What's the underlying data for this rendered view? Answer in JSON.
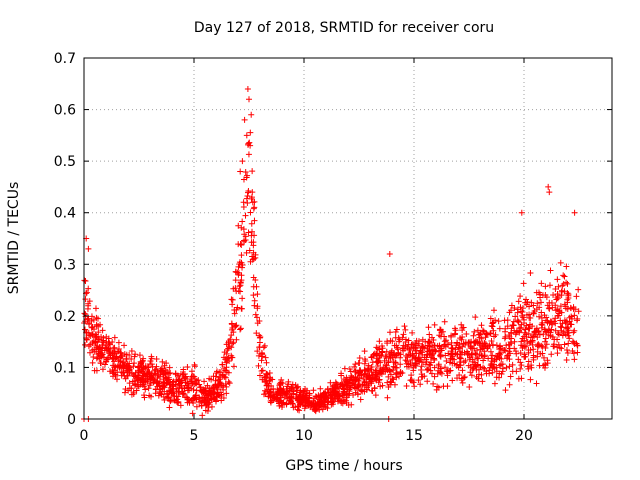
{
  "chart_data": {
    "type": "scatter",
    "title": "Day 127 of 2018, SRMTID for receiver coru",
    "xlabel": "GPS time / hours",
    "ylabel": "SRMTID / TECUs",
    "xlim": [
      0,
      24
    ],
    "ylim": [
      0,
      0.7
    ],
    "grid": true,
    "marker": "+",
    "marker_color": "#ff0000",
    "x_ticks": [
      0,
      5,
      10,
      15,
      20
    ],
    "x_tick_labels": [
      "0",
      "5",
      "10",
      "15",
      "20"
    ],
    "y_ticks": [
      0,
      0.1,
      0.2,
      0.3,
      0.4,
      0.5,
      0.6,
      0.7
    ],
    "y_tick_labels": [
      "0",
      "0.1",
      "0.2",
      "0.3",
      "0.4",
      "0.5",
      "0.6",
      "0.7"
    ],
    "series": [
      {
        "name": "SRMTID",
        "envelope": [
          {
            "x": 0.0,
            "mean": 0.22,
            "spread": 0.09
          },
          {
            "x": 0.5,
            "mean": 0.15,
            "spread": 0.06
          },
          {
            "x": 1.0,
            "mean": 0.13,
            "spread": 0.05
          },
          {
            "x": 1.5,
            "mean": 0.11,
            "spread": 0.05
          },
          {
            "x": 2.0,
            "mean": 0.09,
            "spread": 0.04
          },
          {
            "x": 3.0,
            "mean": 0.085,
            "spread": 0.04
          },
          {
            "x": 4.0,
            "mean": 0.06,
            "spread": 0.04
          },
          {
            "x": 5.0,
            "mean": 0.06,
            "spread": 0.045
          },
          {
            "x": 5.5,
            "mean": 0.04,
            "spread": 0.03
          },
          {
            "x": 6.0,
            "mean": 0.05,
            "spread": 0.035
          },
          {
            "x": 6.5,
            "mean": 0.1,
            "spread": 0.05
          },
          {
            "x": 7.0,
            "mean": 0.25,
            "spread": 0.12
          },
          {
            "x": 7.5,
            "mean": 0.45,
            "spread": 0.15
          },
          {
            "x": 8.0,
            "mean": 0.12,
            "spread": 0.07
          },
          {
            "x": 8.5,
            "mean": 0.05,
            "spread": 0.03
          },
          {
            "x": 9.5,
            "mean": 0.045,
            "spread": 0.025
          },
          {
            "x": 10.5,
            "mean": 0.03,
            "spread": 0.02
          },
          {
            "x": 11.5,
            "mean": 0.05,
            "spread": 0.025
          },
          {
            "x": 12.5,
            "mean": 0.08,
            "spread": 0.04
          },
          {
            "x": 13.5,
            "mean": 0.1,
            "spread": 0.05
          },
          {
            "x": 14.5,
            "mean": 0.12,
            "spread": 0.06
          },
          {
            "x": 16.0,
            "mean": 0.12,
            "spread": 0.06
          },
          {
            "x": 17.5,
            "mean": 0.13,
            "spread": 0.06
          },
          {
            "x": 19.0,
            "mean": 0.14,
            "spread": 0.07
          },
          {
            "x": 20.0,
            "mean": 0.17,
            "spread": 0.09
          },
          {
            "x": 21.0,
            "mean": 0.18,
            "spread": 0.11
          },
          {
            "x": 21.5,
            "mean": 0.2,
            "spread": 0.1
          },
          {
            "x": 22.5,
            "mean": 0.18,
            "spread": 0.08
          }
        ],
        "outliers": [
          {
            "x": 7.3,
            "y": 0.58
          },
          {
            "x": 7.45,
            "y": 0.64
          },
          {
            "x": 7.5,
            "y": 0.62
          },
          {
            "x": 7.6,
            "y": 0.59
          },
          {
            "x": 7.4,
            "y": 0.55
          },
          {
            "x": 7.2,
            "y": 0.5
          },
          {
            "x": 7.55,
            "y": 0.53
          },
          {
            "x": 7.1,
            "y": 0.48
          },
          {
            "x": 7.65,
            "y": 0.44
          },
          {
            "x": 21.1,
            "y": 0.45
          },
          {
            "x": 21.15,
            "y": 0.44
          },
          {
            "x": 19.9,
            "y": 0.4
          },
          {
            "x": 22.3,
            "y": 0.4
          },
          {
            "x": 13.9,
            "y": 0.32
          },
          {
            "x": 0.1,
            "y": 0.35
          },
          {
            "x": 0.2,
            "y": 0.33
          },
          {
            "x": 0.0,
            "y": 0.0
          },
          {
            "x": 0.2,
            "y": 0.0
          },
          {
            "x": 13.85,
            "y": 0.0
          }
        ]
      }
    ]
  }
}
